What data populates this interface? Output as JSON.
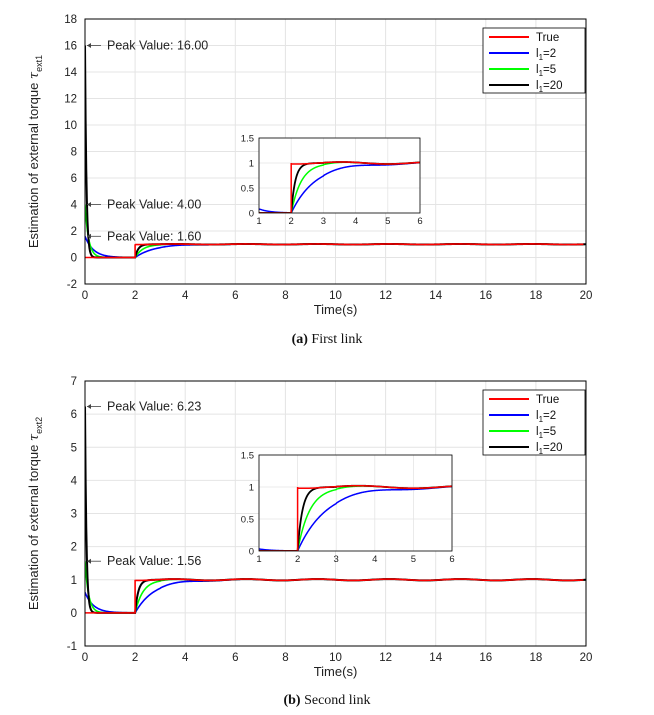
{
  "chart_data": [
    {
      "type": "line",
      "caption_label": "(a)",
      "caption_text": "First link",
      "ylabel_prefix": "Estimation of external torque ",
      "ylabel_symbol": "τ",
      "ylabel_sub": "ext1",
      "xlabel": "Time(s)",
      "xlim": [
        0,
        20
      ],
      "ylim": [
        -2,
        18
      ],
      "xticks": [
        0,
        2,
        4,
        6,
        8,
        10,
        12,
        14,
        16,
        18,
        20
      ],
      "yticks": [
        -2,
        0,
        2,
        4,
        6,
        8,
        10,
        12,
        14,
        16,
        18
      ],
      "grid": true,
      "legend_position": "top-right",
      "step_time": 2,
      "series": [
        {
          "name": "True",
          "label_main": "True",
          "label_sub": "",
          "color": "#ff0000",
          "peak": 0
        },
        {
          "name": "l1=2",
          "label_main": "l",
          "label_sub": "1",
          "label_rest": "=2",
          "color": "#0000ff",
          "peak": 1.6
        },
        {
          "name": "l1=5",
          "label_main": "l",
          "label_sub": "1",
          "label_rest": "=5",
          "color": "#00ff00",
          "peak": 4.0
        },
        {
          "name": "l1=20",
          "label_main": "l",
          "label_sub": "1",
          "label_rest": "=20",
          "color": "#000000",
          "peak": 16.0
        }
      ],
      "annotations": [
        {
          "text": "Peak Value: 16.00",
          "x": 0.0,
          "y": 16.0
        },
        {
          "text": "Peak Value: 4.00",
          "x": 0.0,
          "y": 4.0
        },
        {
          "text": "Peak Value: 1.60",
          "x": 0.0,
          "y": 1.6
        }
      ],
      "inset": {
        "xlim": [
          1,
          6
        ],
        "ylim": [
          0,
          1.5
        ],
        "xticks": [
          1,
          2,
          3,
          4,
          5,
          6
        ],
        "yticks": [
          0,
          0.5,
          1,
          1.5
        ],
        "xtick_labels": [
          "1",
          "2",
          "3",
          "4",
          "5",
          "6"
        ],
        "ytick_labels": [
          "0",
          "0.5",
          "1",
          "1.5"
        ]
      }
    },
    {
      "type": "line",
      "caption_label": "(b)",
      "caption_text": "Second link",
      "ylabel_prefix": "Estimation of external torque ",
      "ylabel_symbol": "τ",
      "ylabel_sub": "ext2",
      "xlabel": "Time(s)",
      "xlim": [
        0,
        20
      ],
      "ylim": [
        -1,
        7
      ],
      "xticks": [
        0,
        2,
        4,
        6,
        8,
        10,
        12,
        14,
        16,
        18,
        20
      ],
      "yticks": [
        -1,
        0,
        1,
        2,
        3,
        4,
        5,
        6,
        7
      ],
      "grid": true,
      "legend_position": "top-right",
      "step_time": 2,
      "series": [
        {
          "name": "True",
          "label_main": "True",
          "label_sub": "",
          "color": "#ff0000",
          "peak": 0
        },
        {
          "name": "l1=2",
          "label_main": "l",
          "label_sub": "1",
          "label_rest": "=2",
          "color": "#0000ff",
          "peak": 0.62
        },
        {
          "name": "l1=5",
          "label_main": "l",
          "label_sub": "1",
          "label_rest": "=5",
          "color": "#00ff00",
          "peak": 1.56
        },
        {
          "name": "l1=20",
          "label_main": "l",
          "label_sub": "1",
          "label_rest": "=20",
          "color": "#000000",
          "peak": 6.23
        }
      ],
      "annotations": [
        {
          "text": "Peak Value: 6.23",
          "x": 0.0,
          "y": 6.23
        },
        {
          "text": "Peak Value: 1.56",
          "x": 0.0,
          "y": 1.56
        }
      ],
      "inset": {
        "xlim": [
          1,
          6
        ],
        "ylim": [
          0,
          1.5
        ],
        "xticks": [
          1,
          2,
          3,
          4,
          5,
          6
        ],
        "yticks": [
          0,
          0.5,
          1,
          1.5
        ],
        "xtick_labels": [
          "1",
          "2",
          "3",
          "4",
          "5",
          "6"
        ],
        "ytick_labels": [
          "0",
          "0.5",
          "1",
          "1.5"
        ]
      }
    }
  ]
}
